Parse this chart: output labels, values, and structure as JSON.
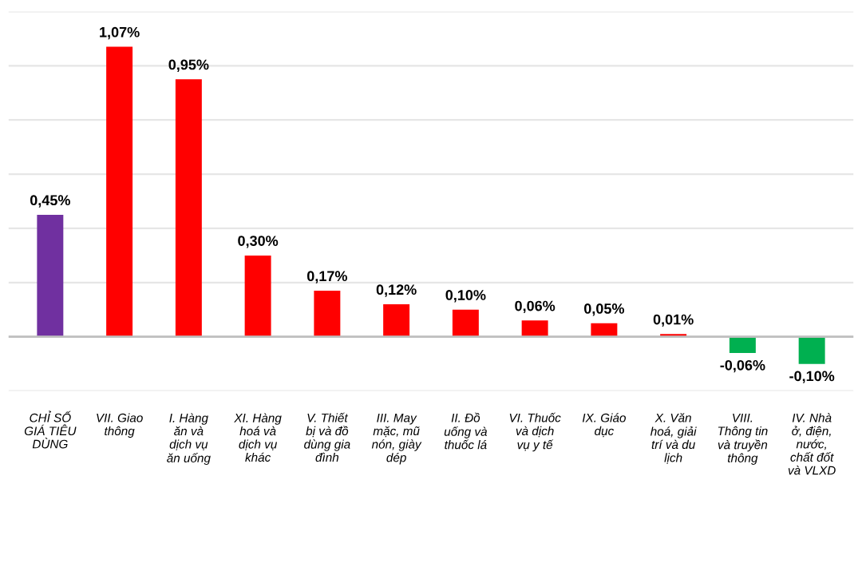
{
  "chart_data": {
    "type": "bar",
    "categories": [
      "CHỈ SỐ GIÁ TIÊU DÙNG",
      "VII. Giao thông",
      "I. Hàng ăn và dịch vụ ăn uống",
      "XI. Hàng hoá và dịch vụ khác",
      "V. Thiết bị và đồ dùng gia đình",
      "III. May mặc, mũ nón, giày dép",
      "II. Đồ uống và thuốc lá",
      "VI. Thuốc và dịch vụ y tế",
      "IX. Giáo dục",
      "X. Văn hoá, giải trí và du lịch",
      "VIII. Thông tin và truyền thông",
      "IV. Nhà ở, điện, nước, chất đốt và VLXD"
    ],
    "values": [
      0.45,
      1.07,
      0.95,
      0.3,
      0.17,
      0.12,
      0.1,
      0.06,
      0.05,
      0.01,
      -0.06,
      -0.1
    ],
    "colors": [
      "#7030a0",
      "#ff0000",
      "#ff0000",
      "#ff0000",
      "#ff0000",
      "#ff0000",
      "#ff0000",
      "#ff0000",
      "#ff0000",
      "#ff0000",
      "#00b050",
      "#00b050"
    ],
    "value_labels": [
      "0,45%",
      "1,07%",
      "0,95%",
      "0,30%",
      "0,17%",
      "0,12%",
      "0,10%",
      "0,06%",
      "0,05%",
      "0,01%",
      "-0,06%",
      "-0,10%"
    ],
    "ylim": [
      -0.2,
      1.2
    ],
    "yticks": [
      {
        "value": -0.2,
        "label": null
      },
      {
        "value": 0,
        "label": null
      },
      {
        "value": 0.2,
        "label": null
      },
      {
        "value": 0.4,
        "label": null
      },
      {
        "value": 0.6,
        "label": null
      },
      {
        "value": 0.8,
        "label": null
      },
      {
        "value": 1.0,
        "label": null
      },
      {
        "value": 1.2,
        "label": null
      }
    ],
    "grid": "y"
  }
}
